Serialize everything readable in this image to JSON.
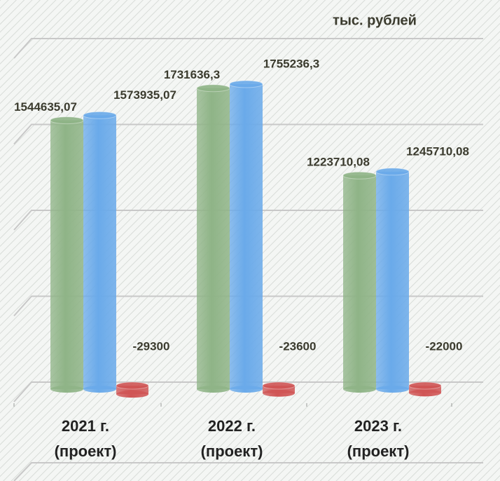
{
  "chart_data": {
    "type": "bar3d",
    "subtitle": "тыс. рублей",
    "categories": [
      "2021 г. (проект)",
      "2022 г. (проект)",
      "2023 г. (проект)"
    ],
    "series": [
      {
        "color": "#8fb487",
        "values": [
          1544635.07,
          1731636.3,
          1223710.08
        ],
        "value_labels": [
          "1544635,07",
          "1731636,3",
          "1223710,08"
        ]
      },
      {
        "color": "#6aaaea",
        "values": [
          1573935.07,
          1755236.3,
          1245710.08
        ],
        "value_labels": [
          "1573935,07",
          "1755236,3",
          "1245710,08"
        ]
      },
      {
        "color": "#d05555",
        "values": [
          -29300,
          -23600,
          -22000
        ]
      }
    ],
    "ylim": [
      0,
      2000000
    ],
    "yticks": [
      0,
      500000,
      1000000,
      1500000,
      2000000
    ],
    "grid": true
  }
}
